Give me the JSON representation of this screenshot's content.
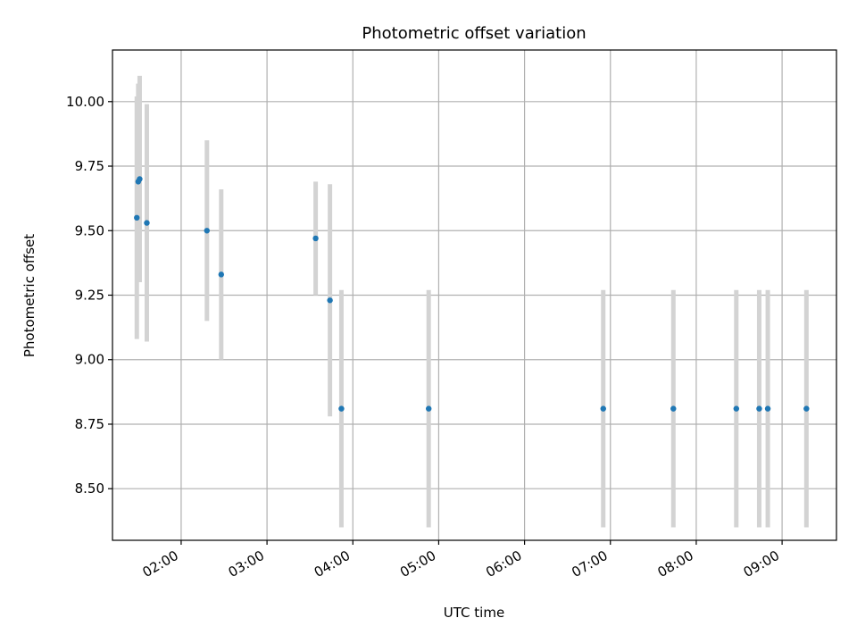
{
  "chart_data": {
    "type": "scatter",
    "title": "Photometric offset variation",
    "xlabel": "UTC time",
    "ylabel": "Photometric offset",
    "x_axis": "time",
    "xlim": [
      "01:12",
      "09:38"
    ],
    "ylim": [
      8.3,
      10.2
    ],
    "xticks": [
      "02:00",
      "03:00",
      "04:00",
      "05:00",
      "06:00",
      "07:00",
      "08:00",
      "09:00"
    ],
    "yticks": [
      "8.50",
      "8.75",
      "9.00",
      "9.25",
      "9.50",
      "9.75",
      "10.00"
    ],
    "grid": true,
    "point_color": "#1f77b4",
    "errorbar_color": "#d3d3d3",
    "points": [
      {
        "x": "01:29",
        "y": 9.55,
        "err": 0.47
      },
      {
        "x": "01:30",
        "y": 9.69,
        "err": 0.38
      },
      {
        "x": "01:31",
        "y": 9.7,
        "err": 0.4
      },
      {
        "x": "01:36",
        "y": 9.53,
        "err": 0.46
      },
      {
        "x": "02:18",
        "y": 9.5,
        "err": 0.35
      },
      {
        "x": "02:28",
        "y": 9.33,
        "err": 0.33
      },
      {
        "x": "03:34",
        "y": 9.47,
        "err": 0.22
      },
      {
        "x": "03:44",
        "y": 9.23,
        "err": 0.45
      },
      {
        "x": "03:52",
        "y": 8.81,
        "err": 0.46
      },
      {
        "x": "04:53",
        "y": 8.81,
        "err": 0.46
      },
      {
        "x": "06:55",
        "y": 8.81,
        "err": 0.46
      },
      {
        "x": "07:44",
        "y": 8.81,
        "err": 0.46
      },
      {
        "x": "08:28",
        "y": 8.81,
        "err": 0.46
      },
      {
        "x": "08:44",
        "y": 8.81,
        "err": 0.46
      },
      {
        "x": "08:50",
        "y": 8.81,
        "err": 0.46
      },
      {
        "x": "09:17",
        "y": 8.81,
        "err": 0.46
      }
    ]
  }
}
